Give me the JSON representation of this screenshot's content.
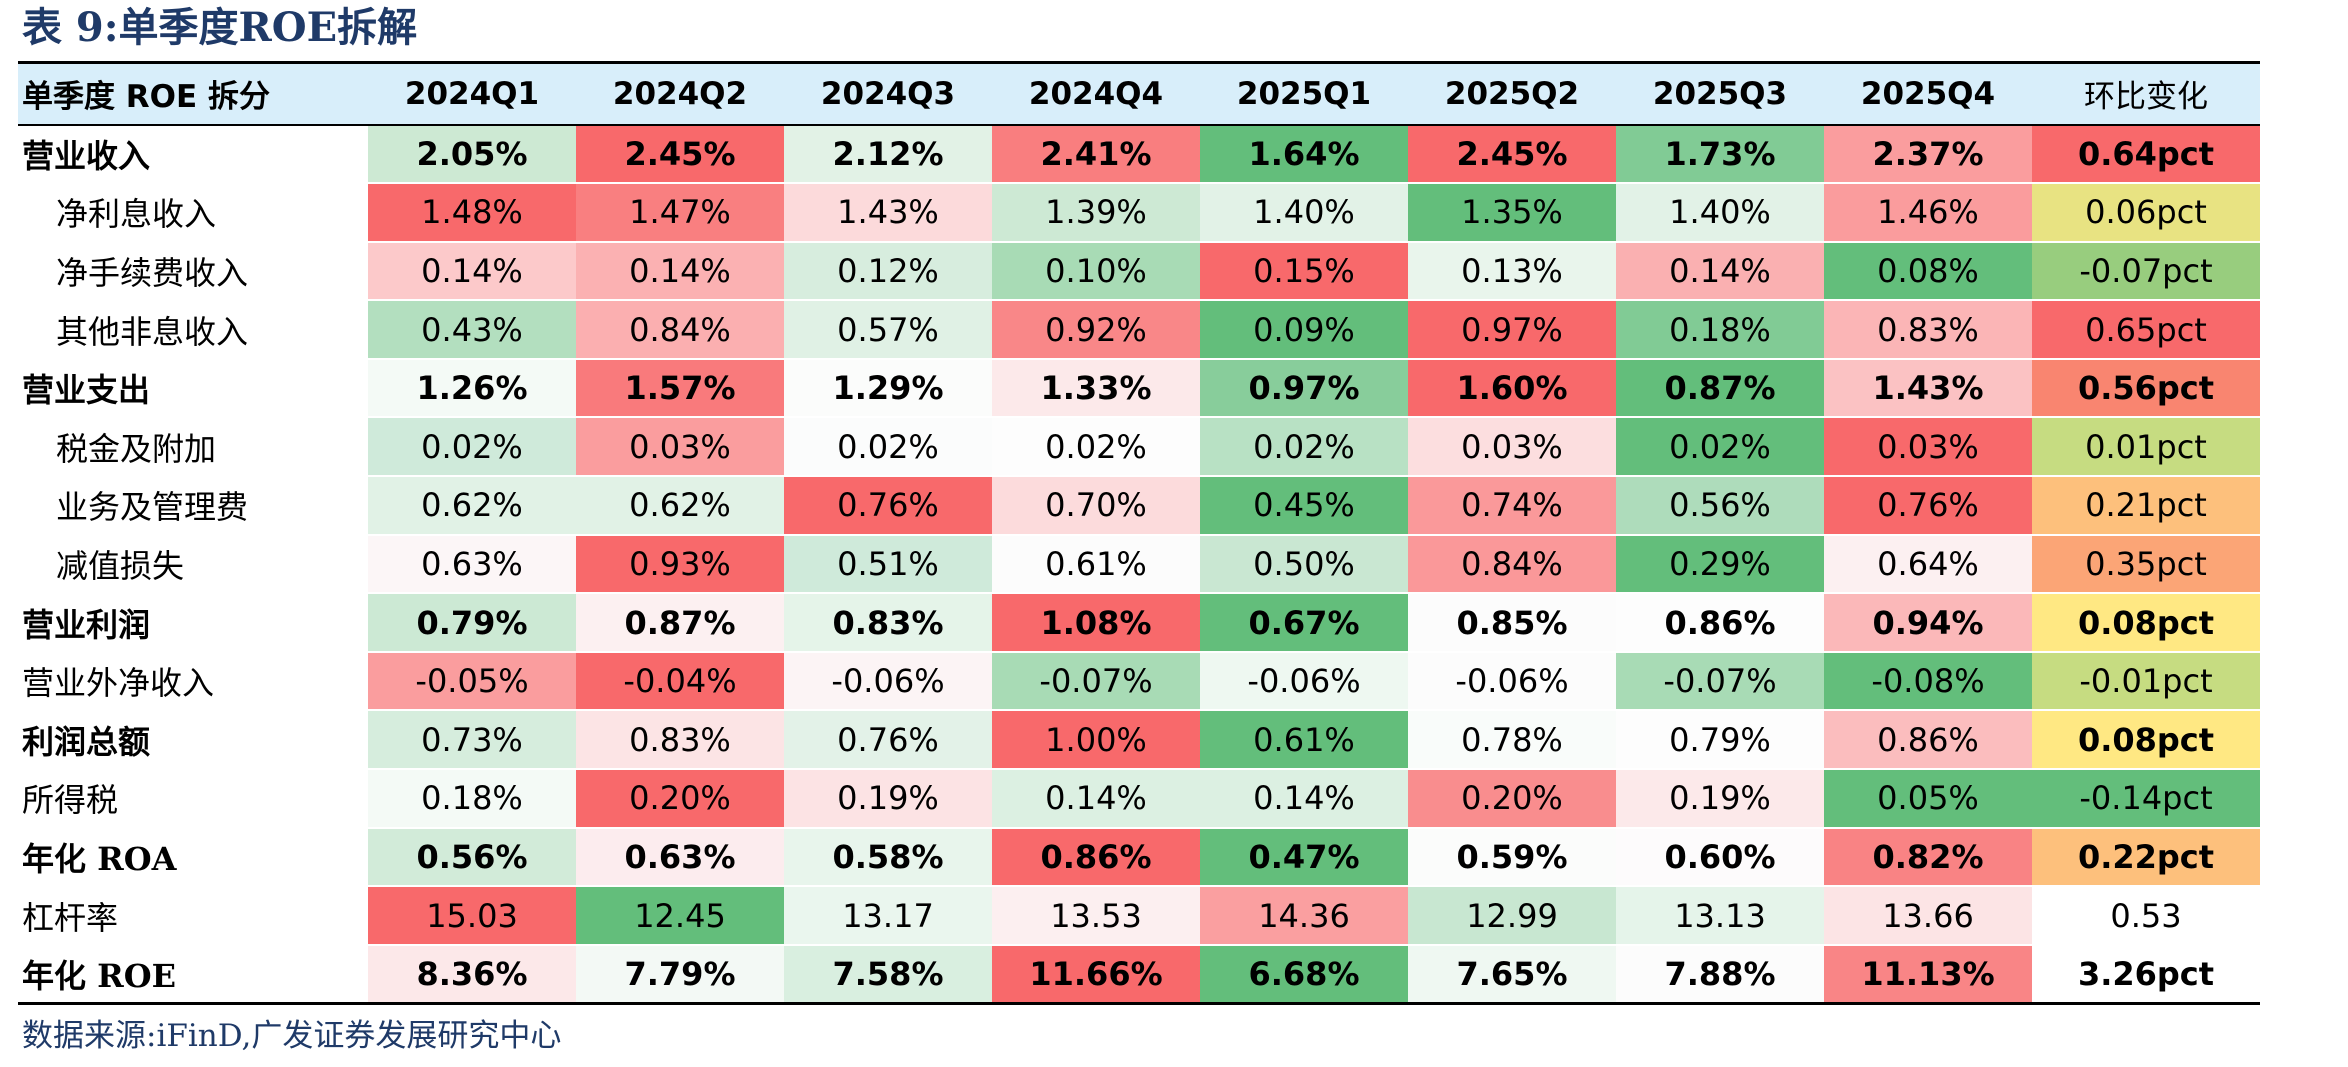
{
  "title": "表 9:单季度ROE拆解",
  "table": {
    "header_label": "单季度 ROE 拆分",
    "quarters": [
      "2024Q1",
      "2024Q2",
      "2024Q3",
      "2024Q4",
      "2025Q1",
      "2025Q2",
      "2025Q3",
      "2025Q4"
    ],
    "change_header": "环比变化",
    "rows": [
      {
        "label": "营业收入",
        "level": 0,
        "bold": true,
        "values": [
          "2.05%",
          "2.45%",
          "2.12%",
          "2.41%",
          "1.64%",
          "2.45%",
          "1.73%",
          "2.37%"
        ],
        "change": "0.64pct",
        "colors": [
          "#cde9d3",
          "#f8696b",
          "#e2f2e6",
          "#f97e7f",
          "#63be7b",
          "#f8696b",
          "#81cb95",
          "#fa9d9e"
        ],
        "change_color": "#f8696b"
      },
      {
        "label": "净利息收入",
        "level": 1,
        "bold": false,
        "values": [
          "1.48%",
          "1.47%",
          "1.43%",
          "1.39%",
          "1.40%",
          "1.35%",
          "1.40%",
          "1.46%"
        ],
        "change": "0.06pct",
        "colors": [
          "#f8696b",
          "#f97f80",
          "#fcdadb",
          "#cde9d4",
          "#e2f2e7",
          "#63be7b",
          "#e2f2e7",
          "#fa9c9d"
        ],
        "change_color": "#e8e382"
      },
      {
        "label": "净手续费收入",
        "level": 1,
        "bold": false,
        "values": [
          "0.14%",
          "0.14%",
          "0.12%",
          "0.10%",
          "0.15%",
          "0.13%",
          "0.14%",
          "0.08%"
        ],
        "change": "-0.07pct",
        "colors": [
          "#fcc9ca",
          "#fbb1b2",
          "#d7edde",
          "#a8dbb5",
          "#f8696b",
          "#e9f5ec",
          "#fab0b1",
          "#63be7b"
        ],
        "change_color": "#98cd7e"
      },
      {
        "label": "其他非息收入",
        "level": 1,
        "bold": false,
        "values": [
          "0.43%",
          "0.84%",
          "0.57%",
          "0.92%",
          "0.09%",
          "0.97%",
          "0.18%",
          "0.83%"
        ],
        "change": "0.65pct",
        "colors": [
          "#b3dfbf",
          "#fbafb0",
          "#e0f1e5",
          "#f98788",
          "#63be7b",
          "#f8696b",
          "#81cb95",
          "#fbb5b6"
        ],
        "change_color": "#f8696b"
      },
      {
        "label": "营业支出",
        "level": 0,
        "bold": true,
        "values": [
          "1.26%",
          "1.57%",
          "1.29%",
          "1.33%",
          "0.97%",
          "1.60%",
          "0.87%",
          "1.43%"
        ],
        "change": "0.56pct",
        "colors": [
          "#f4faf6",
          "#f97a7c",
          "#fbfcfb",
          "#fce9ea",
          "#88cd9b",
          "#f8696b",
          "#63be7b",
          "#fbc2c3"
        ],
        "change_color": "#f98570"
      },
      {
        "label": "税金及附加",
        "level": 1,
        "bold": false,
        "values": [
          "0.02%",
          "0.03%",
          "0.02%",
          "0.02%",
          "0.02%",
          "0.03%",
          "0.02%",
          "0.03%"
        ],
        "change": "0.01pct",
        "colors": [
          "#cfeada",
          "#fa9d9e",
          "#fbfcfc",
          "#fdfdfd",
          "#b8e1c4",
          "#fcdedf",
          "#63be7b",
          "#f8696b"
        ],
        "change_color": "#c6dc81"
      },
      {
        "label": "业务及管理费",
        "level": 1,
        "bold": false,
        "values": [
          "0.62%",
          "0.62%",
          "0.76%",
          "0.70%",
          "0.45%",
          "0.74%",
          "0.56%",
          "0.76%"
        ],
        "change": "0.21pct",
        "colors": [
          "#e1f2e6",
          "#e1f2e6",
          "#f8696b",
          "#fcdbdc",
          "#63be7b",
          "#fa999a",
          "#aedcbb",
          "#f8696b"
        ],
        "change_color": "#fdc07c"
      },
      {
        "label": "减值损失",
        "level": 1,
        "bold": false,
        "values": [
          "0.63%",
          "0.93%",
          "0.51%",
          "0.61%",
          "0.50%",
          "0.84%",
          "0.29%",
          "0.64%"
        ],
        "change": "0.35pct",
        "colors": [
          "#fcf6f7",
          "#f8696b",
          "#cfeada",
          "#fcfcfc",
          "#c9e7d2",
          "#fa9899",
          "#63be7b",
          "#fcf0f1"
        ],
        "change_color": "#fba576"
      },
      {
        "label": "营业利润",
        "level": 0,
        "bold": true,
        "values": [
          "0.79%",
          "0.87%",
          "0.83%",
          "1.08%",
          "0.67%",
          "0.85%",
          "0.86%",
          "0.94%"
        ],
        "change": "0.08pct",
        "colors": [
          "#cce9d4",
          "#fcf0f1",
          "#e5f4e9",
          "#f8696b",
          "#63be7b",
          "#fcfcfc",
          "#fdfdfd",
          "#fbb8b9"
        ],
        "change_color": "#ffe883"
      },
      {
        "label": "营业外净收入",
        "level": 0,
        "bold": false,
        "values": [
          "-0.05%",
          "-0.04%",
          "-0.06%",
          "-0.07%",
          "-0.06%",
          "-0.06%",
          "-0.07%",
          "-0.08%"
        ],
        "change": "-0.01pct",
        "colors": [
          "#fa9d9e",
          "#f8696b",
          "#fcf4f5",
          "#a8dbb5",
          "#eef8f1",
          "#fcfcfc",
          "#a8dbb5",
          "#63be7b"
        ],
        "change_color": "#c6dc81"
      },
      {
        "label": "利润总额",
        "level": 0,
        "bold": true,
        "bold_values": false,
        "values": [
          "0.73%",
          "0.83%",
          "0.76%",
          "1.00%",
          "0.61%",
          "0.78%",
          "0.79%",
          "0.86%"
        ],
        "change": "0.08pct",
        "colors": [
          "#d6eddd",
          "#fce4e5",
          "#e3f2e8",
          "#f8696b",
          "#63be7b",
          "#f9fcfa",
          "#fdfdfd",
          "#fbbdbe"
        ],
        "change_color": "#ffe883"
      },
      {
        "label": "所得税",
        "level": 0,
        "bold": false,
        "values": [
          "0.18%",
          "0.20%",
          "0.19%",
          "0.14%",
          "0.14%",
          "0.20%",
          "0.19%",
          "0.05%"
        ],
        "change": "-0.14pct",
        "colors": [
          "#f4faf6",
          "#f8696b",
          "#fce3e4",
          "#dcf0e2",
          "#dcf0e2",
          "#f98d8e",
          "#fce9ea",
          "#63be7b"
        ],
        "change_color": "#63be7b"
      },
      {
        "label": "年化 ROA",
        "level": 0,
        "bold": true,
        "values": [
          "0.56%",
          "0.63%",
          "0.58%",
          "0.86%",
          "0.47%",
          "0.59%",
          "0.60%",
          "0.82%"
        ],
        "change": "0.22pct",
        "colors": [
          "#d2ebd9",
          "#fcecee",
          "#e8f5ec",
          "#f8696b",
          "#63be7b",
          "#fbfcfb",
          "#fdfbfc",
          "#f98384"
        ],
        "change_color": "#fdc07c"
      },
      {
        "label": "杠杆率",
        "level": 0,
        "bold": false,
        "values": [
          "15.03",
          "12.45",
          "13.17",
          "13.53",
          "14.36",
          "12.99",
          "13.13",
          "13.66"
        ],
        "change": "0.53",
        "colors": [
          "#f8696b",
          "#63be7b",
          "#eaf6ee",
          "#fceff0",
          "#fa9fa0",
          "#c8e7d1",
          "#e5f4ea",
          "#fce4e5"
        ],
        "change_color": "#ffffff"
      },
      {
        "label": "年化 ROE",
        "level": 0,
        "bold": true,
        "values": [
          "8.36%",
          "7.79%",
          "7.58%",
          "11.66%",
          "6.68%",
          "7.65%",
          "7.88%",
          "11.13%"
        ],
        "change": "3.26pct",
        "colors": [
          "#fce8e9",
          "#f3f9f5",
          "#d9efe0",
          "#f8696b",
          "#63be7b",
          "#eff8f2",
          "#fcfcfc",
          "#f98586"
        ],
        "change_color": "#ffffff"
      }
    ]
  },
  "source": "数据来源:iFinD,广发证券发展研究中心"
}
